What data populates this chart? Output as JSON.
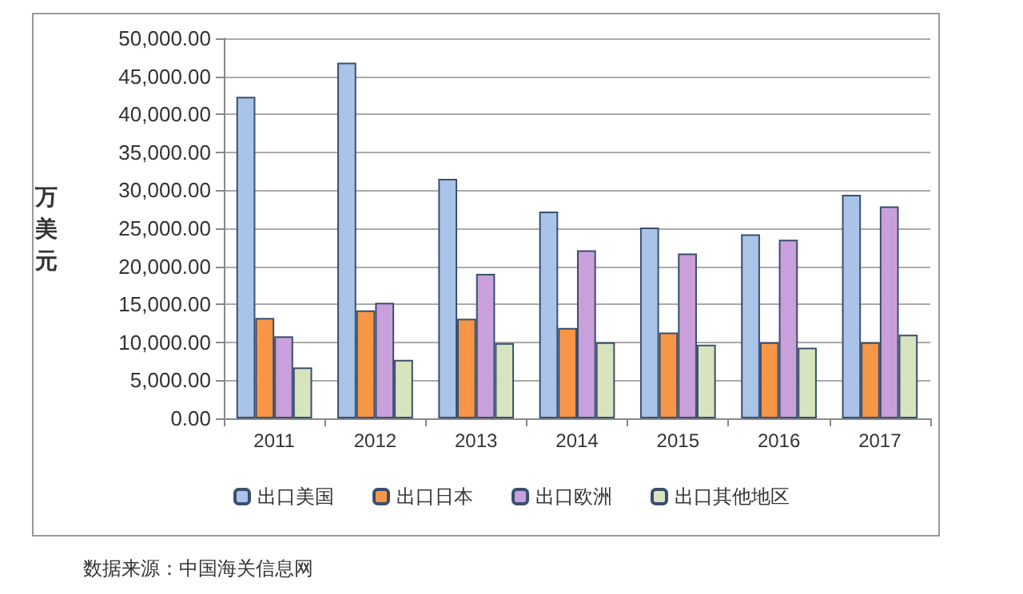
{
  "chart_data": {
    "type": "bar",
    "ylabel": "万美元",
    "categories": [
      "2011",
      "2012",
      "2013",
      "2014",
      "2015",
      "2016",
      "2017"
    ],
    "series": [
      {
        "name": "出口美国",
        "color": "#a9c4e8",
        "values": [
          42300,
          46800,
          31500,
          27200,
          25100,
          24200,
          29400
        ]
      },
      {
        "name": "出口日本",
        "color": "#f79646",
        "values": [
          13200,
          14200,
          13100,
          11900,
          11300,
          10000,
          10000
        ]
      },
      {
        "name": "出口欧洲",
        "color": "#c9a0dc",
        "values": [
          10800,
          15200,
          19000,
          22100,
          21700,
          23500,
          27900
        ]
      },
      {
        "name": "出口其他地区",
        "color": "#d7e4bd",
        "values": [
          6700,
          7700,
          9900,
          10000,
          9700,
          9300,
          11000
        ]
      }
    ],
    "ylim": [
      0,
      50000
    ],
    "yticks": [
      {
        "value": 0,
        "label": "0.00"
      },
      {
        "value": 5000,
        "label": "5,000.00"
      },
      {
        "value": 10000,
        "label": "10,000.00"
      },
      {
        "value": 15000,
        "label": "15,000.00"
      },
      {
        "value": 20000,
        "label": "20,000.00"
      },
      {
        "value": 25000,
        "label": "25,000.00"
      },
      {
        "value": 30000,
        "label": "30,000.00"
      },
      {
        "value": 35000,
        "label": "35,000.00"
      },
      {
        "value": 40000,
        "label": "40,000.00"
      },
      {
        "value": 45000,
        "label": "45,000.00"
      },
      {
        "value": 50000,
        "label": "50,000.00"
      }
    ],
    "grid": "y",
    "legend": "bottom",
    "annotations": [
      "数据来源：中国海关信息网"
    ]
  }
}
